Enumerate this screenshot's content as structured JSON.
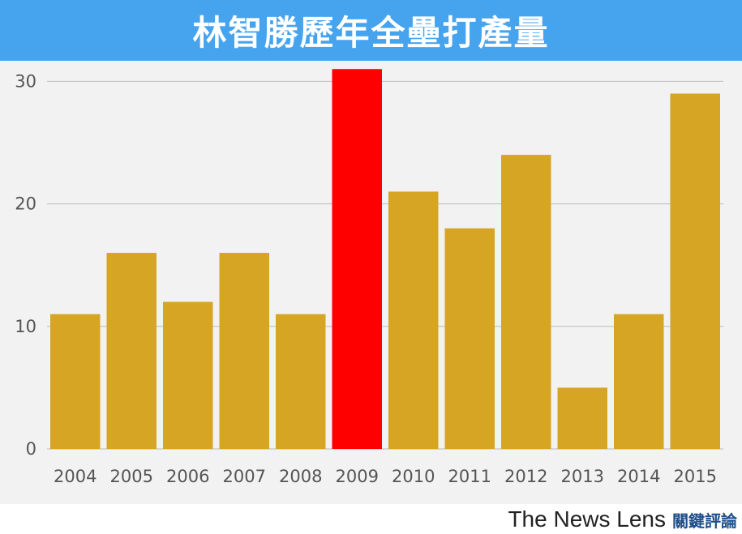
{
  "header": {
    "title": "林智勝歷年全壘打產量",
    "background_color": "#46a3ee"
  },
  "footer": {
    "brand_en": "The News Lens",
    "brand_zh": "關鍵評論"
  },
  "chart_data": {
    "type": "bar",
    "title": "林智勝歷年全壘打產量",
    "xlabel": "",
    "ylabel": "",
    "categories": [
      "2004",
      "2005",
      "2006",
      "2007",
      "2008",
      "2009",
      "2010",
      "2011",
      "2012",
      "2013",
      "2014",
      "2015"
    ],
    "values": [
      11,
      16,
      12,
      16,
      11,
      31,
      21,
      18,
      24,
      5,
      11,
      29
    ],
    "ylim": [
      0,
      33
    ],
    "yticks": [
      0,
      10,
      20,
      30
    ],
    "grid": true,
    "legend": "none",
    "bar_color": "#d7a524",
    "highlight_category": "2009",
    "highlight_color": "#ff0000",
    "plot_background": "#f2f2f2",
    "gridline_color": "#bbbbbb"
  }
}
